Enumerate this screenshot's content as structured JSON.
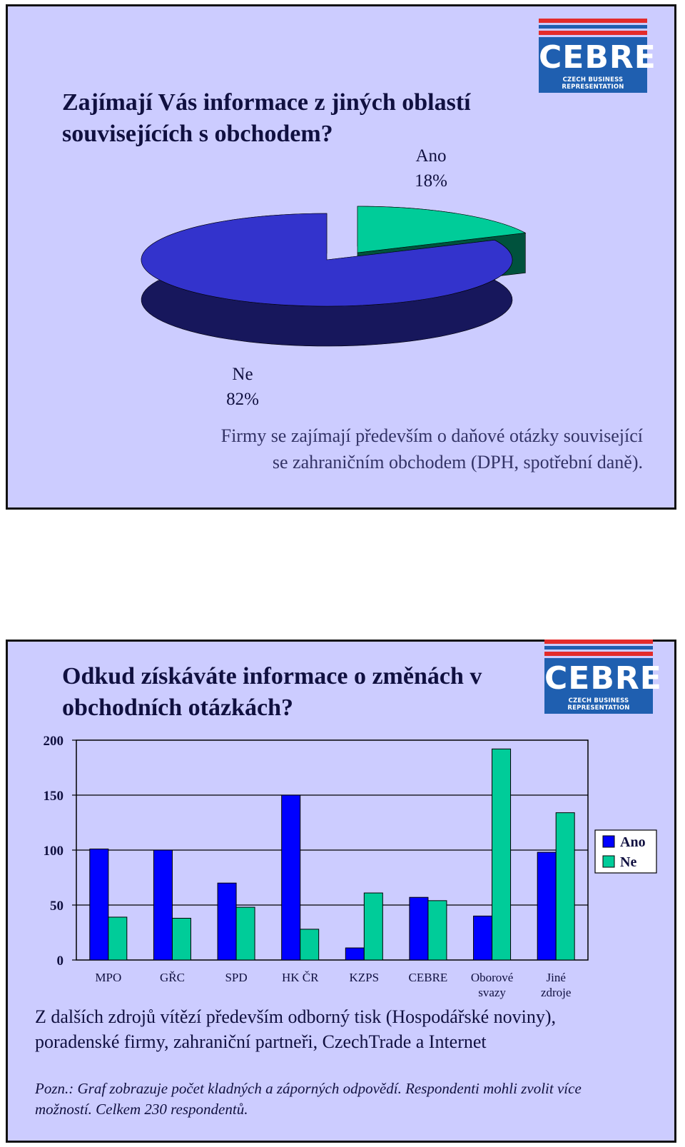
{
  "colors": {
    "panel_bg": "#ccccff",
    "ano_pie": "#00cc99",
    "ne_pie": "#3333cc",
    "bar_ano": "#0000ff",
    "bar_ne": "#00cc99",
    "logo_blue": "#1f5fb0",
    "logo_red": "#e32b2b"
  },
  "logo": {
    "text": "CEBRE",
    "tagline": "CZECH BUSINESS REPRESENTATION"
  },
  "panel1": {
    "title_line1": "Zajímají Vás informace z jiných oblastí",
    "title_line2": "souvisejících s obchodem?",
    "note_line1": "Firmy se zajímají především o daňové otázky související",
    "note_line2": "se zahraničním obchodem (DPH, spotřební daně)."
  },
  "panel2": {
    "title_line1": "Odkud získáváte informace o změnách v",
    "title_line2": "obchodních otázkách?",
    "note_line1": "Z dalších zdrojů vítězí především odborný tisk (Hospodářské noviny),",
    "note_line2": "poradenské firmy, zahraniční partneři, CzechTrade a Internet",
    "footnote_line1": "Pozn.: Graf zobrazuje počet kladných a záporných odpovědí. Respondenti mohli zvolit více",
    "footnote_line2": "možností. Celkem 230 respondentů."
  },
  "chart_data": [
    {
      "type": "pie",
      "style": "3d-exploded",
      "slices": [
        {
          "name": "Ano",
          "value": 18,
          "label_name": "Ano",
          "label_value": "18%"
        },
        {
          "name": "Ne",
          "value": 82,
          "label_name": "Ne",
          "label_value": "82%"
        }
      ]
    },
    {
      "type": "bar",
      "categories": [
        "MPO",
        "GŘC",
        "SPD",
        "HK ČR",
        "KZPS",
        "CEBRE",
        "Oborové svazy",
        "Jiné zdroje"
      ],
      "category_lines": [
        [
          "MPO"
        ],
        [
          "GŘC"
        ],
        [
          "SPD"
        ],
        [
          "HK ČR"
        ],
        [
          "KZPS"
        ],
        [
          "CEBRE"
        ],
        [
          "Oborové",
          "svazy"
        ],
        [
          "Jiné",
          "zdroje"
        ]
      ],
      "series": [
        {
          "name": "Ano",
          "values": [
            101,
            100,
            70,
            150,
            11,
            57,
            40,
            98
          ]
        },
        {
          "name": "Ne",
          "values": [
            39,
            38,
            48,
            28,
            61,
            54,
            192,
            134
          ]
        }
      ],
      "ylim": [
        0,
        200
      ],
      "yticks": [
        "0",
        "50",
        "100",
        "150",
        "200"
      ],
      "grid": true,
      "legend": "right"
    }
  ]
}
